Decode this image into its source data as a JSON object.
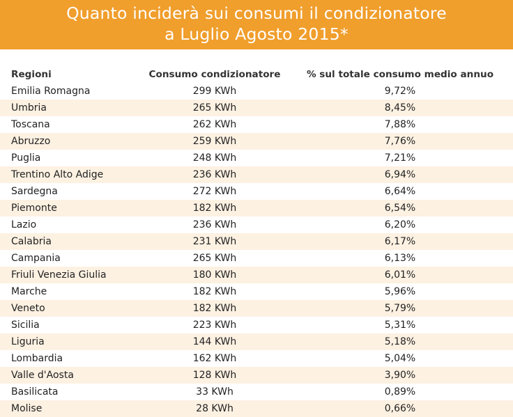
{
  "header": {
    "title_line1": "Quanto inciderà sui consumi il condizionatore",
    "title_line2": "a Luglio Agosto 2015*"
  },
  "table": {
    "columns": [
      "Regioni",
      "Consumo condizionatore",
      "% sul totale consumo medio annuo"
    ]
  },
  "chart_data": {
    "type": "table",
    "title": "Quanto inciderà sui consumi il condizionatore a Luglio Agosto 2015*",
    "columns": [
      "Regioni",
      "Consumo condizionatore",
      "% sul totale consumo medio annuo"
    ],
    "rows": [
      [
        "Emilia Romagna",
        "299 KWh",
        "9,72%"
      ],
      [
        "Umbria",
        "265 KWh",
        "8,45%"
      ],
      [
        "Toscana",
        "262 KWh",
        "7,88%"
      ],
      [
        "Abruzzo",
        "259 KWh",
        "7,76%"
      ],
      [
        "Puglia",
        "248 KWh",
        "7,21%"
      ],
      [
        "Trentino Alto Adige",
        "236 KWh",
        "6,94%"
      ],
      [
        "Sardegna",
        "272 KWh",
        "6,64%"
      ],
      [
        "Piemonte",
        "182 KWh",
        "6,54%"
      ],
      [
        "Lazio",
        "236 KWh",
        "6,20%"
      ],
      [
        "Calabria",
        "231 KWh",
        "6,17%"
      ],
      [
        "Campania",
        "265 KWh",
        "6,13%"
      ],
      [
        "Friuli Venezia Giulia",
        "180 KWh",
        "6,01%"
      ],
      [
        "Marche",
        "182 KWh",
        "5,96%"
      ],
      [
        "Veneto",
        "182 KWh",
        "5,79%"
      ],
      [
        "Sicilia",
        "223 KWh",
        "5,31%"
      ],
      [
        "Liguria",
        "144 KWh",
        "5,18%"
      ],
      [
        "Lombardia",
        "162 KWh",
        "5,04%"
      ],
      [
        "Valle d'Aosta",
        "128 KWh",
        "3,90%"
      ],
      [
        "Basilicata",
        "33 KWh",
        "0,89%"
      ],
      [
        "Molise",
        "28 KWh",
        "0,66%"
      ]
    ]
  },
  "colors": {
    "header_bg": "#f09e2c",
    "header_text": "#ffffff",
    "row_stripe": "#fdf1e2"
  }
}
